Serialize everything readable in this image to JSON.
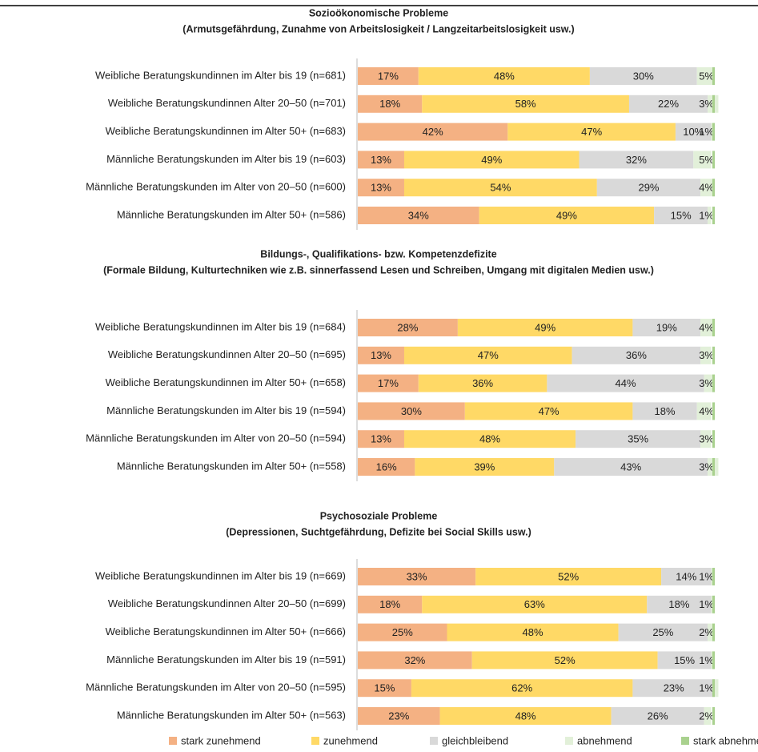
{
  "legend": [
    {
      "name": "stark zunehmend",
      "color": "#f4b183"
    },
    {
      "name": "zunehmend",
      "color": "#ffd966"
    },
    {
      "name": "gleichbleibend",
      "color": "#d9d9d9"
    },
    {
      "name": "abnehmend",
      "color": "#e2f0d9"
    },
    {
      "name": "stark abnehmend",
      "color": "#a9d18e"
    }
  ],
  "chart_data": [
    {
      "type": "bar",
      "stacked": true,
      "orientation": "horizontal",
      "xlim": [
        0,
        100
      ],
      "title": "Sozioökonomische Probleme",
      "subtitle": "(Armutsgefährdung, Zunahme von Arbeitslosigkeit / Langzeitarbeitslosigkeit usw.)",
      "categories": [
        "Weibliche Beratungskundinnen im Alter bis 19 (n=681)",
        "Weibliche Beratungskundinnen Alter 20–50 (n=701)",
        "Weibliche Beratungskundinnen im Alter 50+ (n=683)",
        "Männliche Beratungskunden im Alter bis 19 (n=603)",
        "Männliche Beratungskunden im Alter von 20–50 (n=600)",
        "Männliche Beratungskunden im Alter 50+ (n=586)"
      ],
      "series": [
        {
          "values": [
            17,
            18,
            42,
            13,
            13,
            34
          ],
          "value_labels": [
            "17%",
            "18%",
            "42%",
            "13%",
            "13%",
            "34%"
          ]
        },
        {
          "values": [
            48,
            58,
            47,
            49,
            54,
            49
          ],
          "value_labels": [
            "48%",
            "58%",
            "47%",
            "49%",
            "54%",
            "49%"
          ]
        },
        {
          "values": [
            30,
            22,
            10,
            32,
            29,
            15
          ],
          "value_labels": [
            "30%",
            "22%",
            "10%",
            "32%",
            "29%",
            "15%"
          ]
        },
        {
          "values": [
            5,
            3,
            1,
            5,
            4,
            1
          ],
          "value_labels": [
            "5%",
            "3%",
            "1%",
            "5%",
            "4%",
            "1%"
          ]
        },
        {
          "values": [
            0,
            0,
            0,
            0,
            0,
            0
          ]
        }
      ]
    },
    {
      "type": "bar",
      "stacked": true,
      "orientation": "horizontal",
      "xlim": [
        0,
        100
      ],
      "title": "Bildungs-, Qualifikations- bzw. Kompetenzdefizite",
      "subtitle": "(Formale Bildung, Kulturtechniken wie z.B. sinnerfassend Lesen und Schreiben, Umgang mit digitalen Medien usw.)",
      "categories": [
        "Weibliche Beratungskundinnen im Alter bis 19 (n=684)",
        "Weibliche Beratungskundinnen Alter 20–50 (n=695)",
        "Weibliche Beratungskundinnen im Alter 50+ (n=658)",
        "Männliche Beratungskunden im Alter bis 19 (n=594)",
        "Männliche Beratungskunden im Alter von 20–50 (n=594)",
        "Männliche Beratungskunden im Alter 50+ (n=558)"
      ],
      "series": [
        {
          "values": [
            28,
            13,
            17,
            30,
            13,
            16
          ],
          "value_labels": [
            "28%",
            "13%",
            "17%",
            "30%",
            "13%",
            "16%"
          ]
        },
        {
          "values": [
            49,
            47,
            36,
            47,
            48,
            39
          ],
          "value_labels": [
            "49%",
            "47%",
            "36%",
            "47%",
            "48%",
            "39%"
          ]
        },
        {
          "values": [
            19,
            36,
            44,
            18,
            35,
            43
          ],
          "value_labels": [
            "19%",
            "36%",
            "44%",
            "18%",
            "35%",
            "43%"
          ]
        },
        {
          "values": [
            4,
            3,
            3,
            4,
            3,
            3
          ],
          "value_labels": [
            "4%",
            "3%",
            "3%",
            "4%",
            "3%",
            "3%"
          ]
        },
        {
          "values": [
            0,
            0,
            0,
            0,
            0,
            0
          ]
        }
      ]
    },
    {
      "type": "bar",
      "stacked": true,
      "orientation": "horizontal",
      "xlim": [
        0,
        100
      ],
      "title": "Psychosoziale Probleme",
      "subtitle": "(Depressionen, Suchtgefährdung, Defizite bei Social Skills usw.)",
      "categories": [
        "Weibliche Beratungskundinnen im Alter bis 19 (n=669)",
        "Weibliche Beratungskundinnen Alter 20–50 (n=699)",
        "Weibliche Beratungskundinnen im Alter 50+ (n=666)",
        "Männliche Beratungskunden im Alter bis 19 (n=591)",
        "Männliche Beratungskunden im Alter von 20–50 (n=595)",
        "Männliche Beratungskunden im Alter 50+ (n=563)"
      ],
      "series": [
        {
          "values": [
            33,
            18,
            25,
            32,
            15,
            23
          ],
          "value_labels": [
            "33%",
            "18%",
            "25%",
            "32%",
            "15%",
            "23%"
          ]
        },
        {
          "values": [
            52,
            63,
            48,
            52,
            62,
            48
          ],
          "value_labels": [
            "52%",
            "63%",
            "48%",
            "52%",
            "62%",
            "48%"
          ]
        },
        {
          "values": [
            14,
            18,
            25,
            15,
            23,
            26
          ],
          "value_labels": [
            "14%",
            "18%",
            "25%",
            "15%",
            "23%",
            "26%"
          ]
        },
        {
          "values": [
            1,
            1,
            2,
            1,
            1,
            2
          ],
          "value_labels": [
            "1%",
            "1%",
            "2%",
            "1%",
            "1%",
            "2%"
          ]
        },
        {
          "values": [
            0,
            0,
            0,
            0,
            0,
            0
          ]
        }
      ]
    }
  ]
}
